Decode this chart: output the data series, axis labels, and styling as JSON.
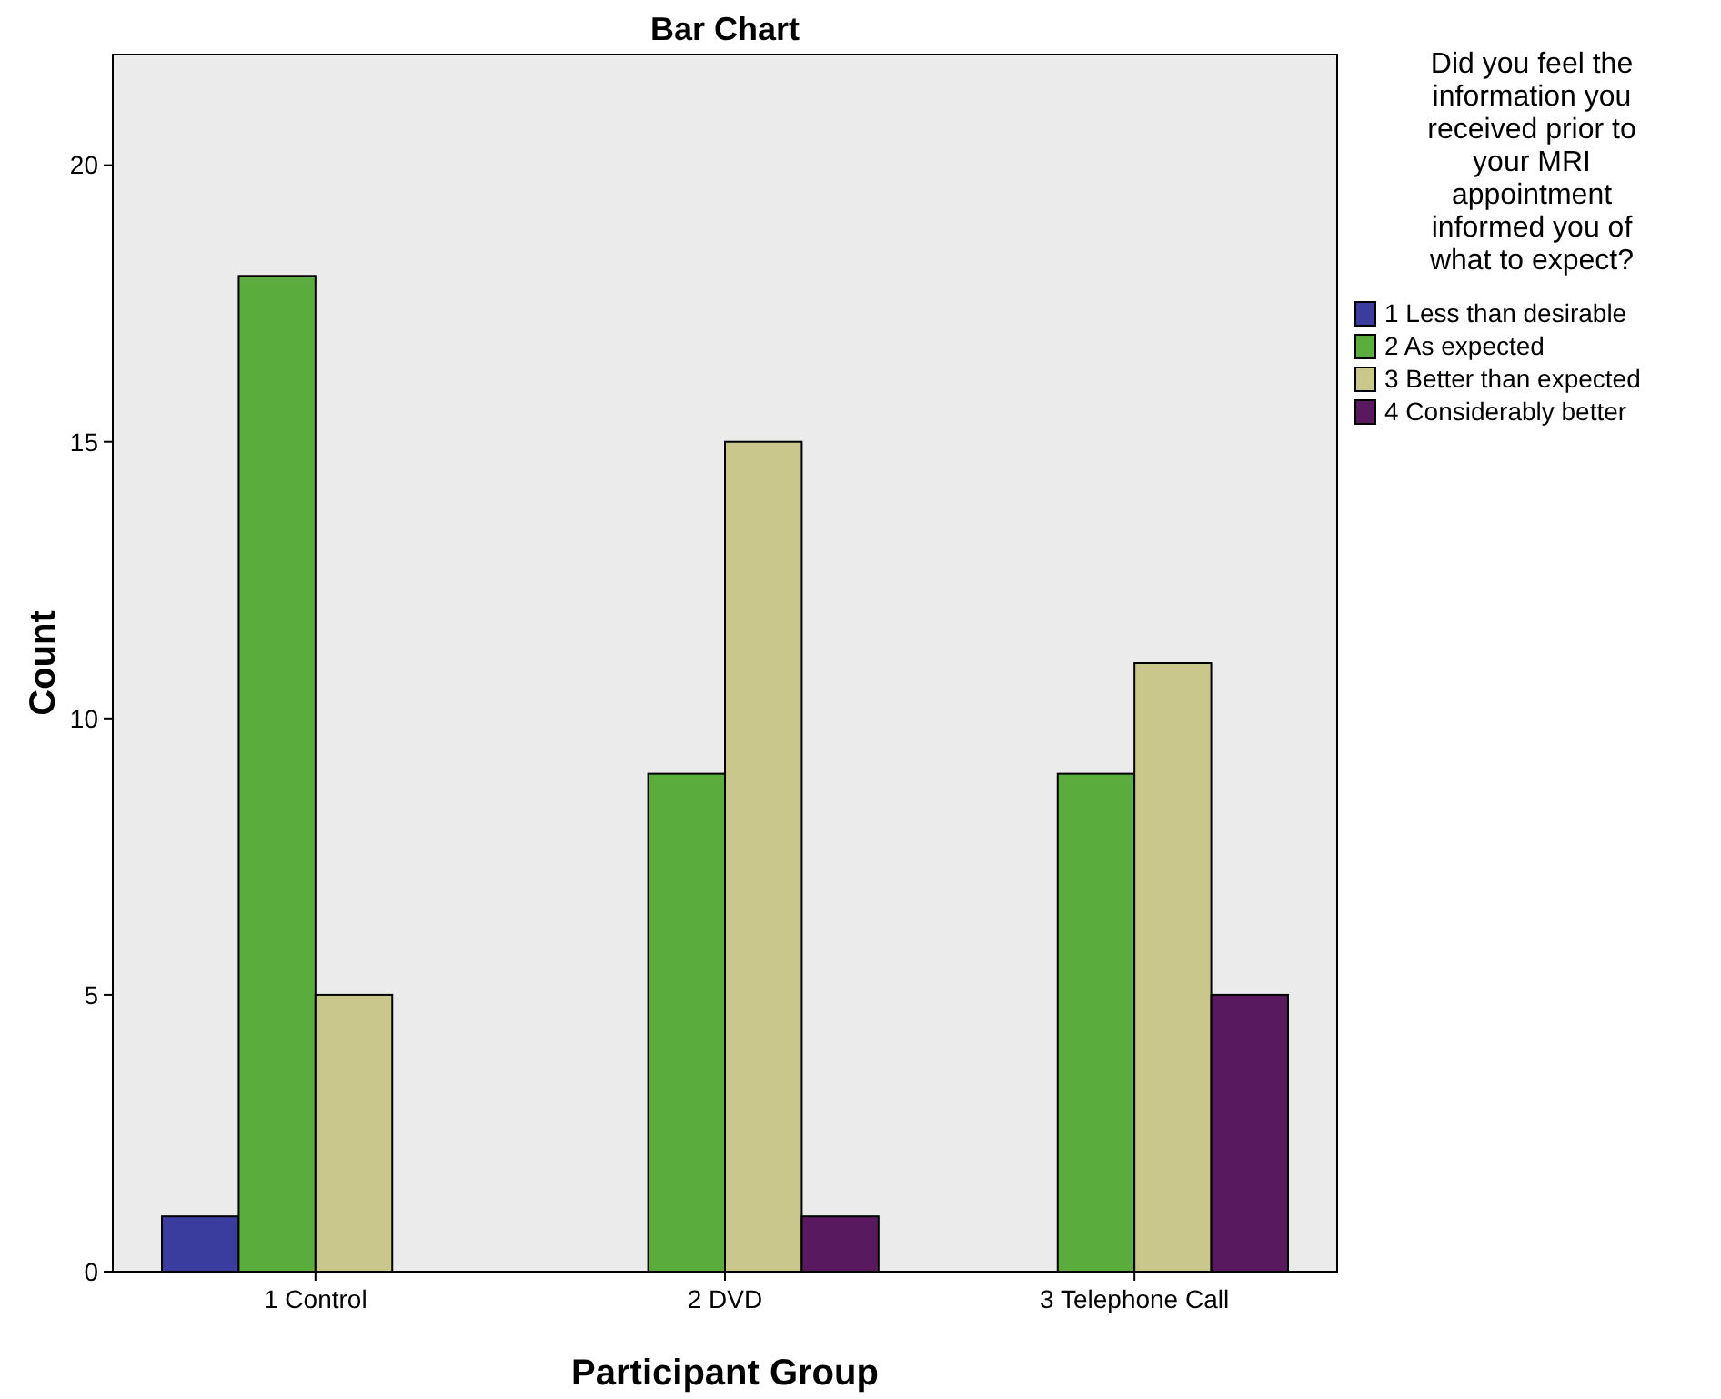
{
  "chart_data": {
    "type": "bar",
    "title": "Bar Chart",
    "xlabel": "Participant Group",
    "ylabel": "Count",
    "legend_title": "Did you feel the information you received prior to your MRI appointment informed you of what to expect?",
    "categories": [
      "1 Control",
      "2 DVD",
      "3 Telephone Call"
    ],
    "series": [
      {
        "name": "1 Less than desirable",
        "color": "#3b3d9e",
        "values": [
          1,
          null,
          null
        ]
      },
      {
        "name": "2 As expected",
        "color": "#5aad3c",
        "values": [
          18,
          9,
          9
        ]
      },
      {
        "name": "3 Better than expected",
        "color": "#c9c78b",
        "values": [
          5,
          15,
          11
        ]
      },
      {
        "name": "4 Considerably better",
        "color": "#58195e",
        "values": [
          null,
          1,
          5
        ]
      }
    ],
    "ylim": [
      0,
      22
    ],
    "yticks": [
      0,
      5,
      10,
      15,
      20
    ],
    "grid": false,
    "legend": "right"
  }
}
